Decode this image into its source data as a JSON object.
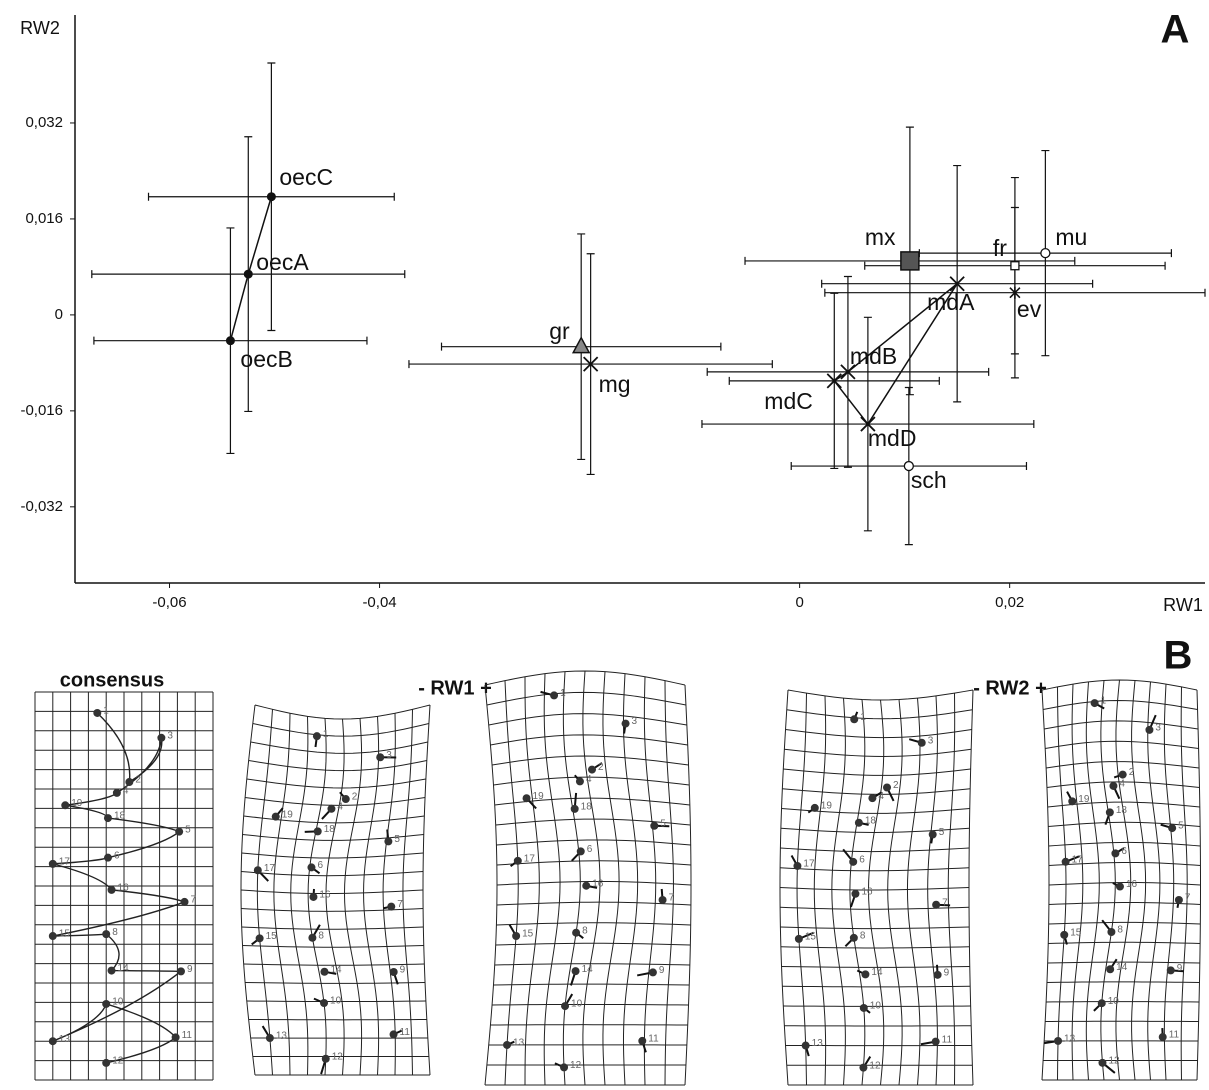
{
  "chart_data": {
    "type": "scatter",
    "panel_label": "A",
    "x_label": "RW1",
    "y_label": "RW2",
    "xlim": [
      -0.069,
      0.0386
    ],
    "ylim": [
      -0.0447,
      0.05
    ],
    "xticks": [
      {
        "value": -0.06,
        "label": "-0,06"
      },
      {
        "value": -0.04,
        "label": "-0,04"
      },
      0,
      {
        "value": 0.02,
        "label": "0,02"
      }
    ],
    "yticks": [
      {
        "value": 0.032,
        "label": "0,032"
      },
      {
        "value": 0.016,
        "label": "0,016"
      },
      0,
      {
        "value": -0.016,
        "label": "-0,016"
      },
      {
        "value": -0.032,
        "label": "-0,032"
      }
    ],
    "points": [
      {
        "name": "oecC",
        "marker": "dot",
        "color": "#111111",
        "x": -0.0503,
        "y": 0.0197,
        "xerr": 0.0117,
        "yerr": 0.0223
      },
      {
        "name": "oecA",
        "marker": "dot",
        "color": "#111111",
        "x": -0.0525,
        "y": 0.0068,
        "xerr": 0.0149,
        "yerr": 0.0229
      },
      {
        "name": "oecB",
        "marker": "dot",
        "color": "#111111",
        "x": -0.0542,
        "y": -0.0043,
        "xerr": 0.013,
        "yerr": 0.0188
      },
      {
        "name": "gr",
        "marker": "triangle",
        "color": "#888888",
        "x": -0.0208,
        "y": -0.0053,
        "xerr": 0.0133,
        "yerr": 0.0188
      },
      {
        "name": "mg",
        "marker": "cross",
        "color": "#111111",
        "x": -0.0199,
        "y": -0.0082,
        "xerr": 0.0173,
        "yerr": 0.0184
      },
      {
        "name": "mx",
        "marker": "square",
        "color": "#555555",
        "x": 0.0105,
        "y": 0.009,
        "xerr": 0.0157,
        "yerr": 0.0223
      },
      {
        "name": "mdA",
        "marker": "cross",
        "color": "#111111",
        "x": 0.015,
        "y": 0.0052,
        "xerr": 0.0129,
        "yerr": 0.0197
      },
      {
        "name": "fr",
        "marker": "open-square",
        "color": "#ffffff",
        "x": 0.0205,
        "y": 0.0082,
        "xerr": 0.0143,
        "yerr": 0.0147
      },
      {
        "name": "mu",
        "marker": "open-circle",
        "color": "#ffffff",
        "x": 0.0234,
        "y": 0.0103,
        "xerr": 0.012,
        "yerr": 0.0171
      },
      {
        "name": "ev",
        "marker": "asterisk",
        "color": "#111111",
        "x": 0.0205,
        "y": 0.0037,
        "xerr": 0.0181,
        "yerr": 0.0142
      },
      {
        "name": "mdB",
        "marker": "cross",
        "color": "#111111",
        "x": 0.0046,
        "y": -0.0095,
        "xerr": 0.0134,
        "yerr": 0.0159
      },
      {
        "name": "mdC",
        "marker": "cross",
        "color": "#111111",
        "x": 0.0033,
        "y": -0.011,
        "xerr": 0.01,
        "yerr": 0.0146
      },
      {
        "name": "mdD",
        "marker": "cross",
        "color": "#111111",
        "x": 0.0065,
        "y": -0.0182,
        "xerr": 0.0158,
        "yerr": 0.0178
      },
      {
        "name": "sch",
        "marker": "open-circle",
        "color": "#ffffff",
        "x": 0.0104,
        "y": -0.0252,
        "xerr": 0.0112,
        "yerr": 0.0131
      }
    ],
    "links": [
      [
        0,
        1,
        2
      ],
      [
        6,
        10,
        11,
        12,
        6
      ]
    ]
  },
  "panel_b": {
    "label": "B",
    "titles": [
      "consensus",
      "- RW1 +",
      "- RW2 +"
    ],
    "landmarks": [
      "1",
      "2",
      "3",
      "4",
      "5",
      "6",
      "7",
      "8",
      "9",
      "10",
      "11",
      "12",
      "13",
      "14",
      "15",
      "16",
      "17",
      "18",
      "19"
    ]
  }
}
